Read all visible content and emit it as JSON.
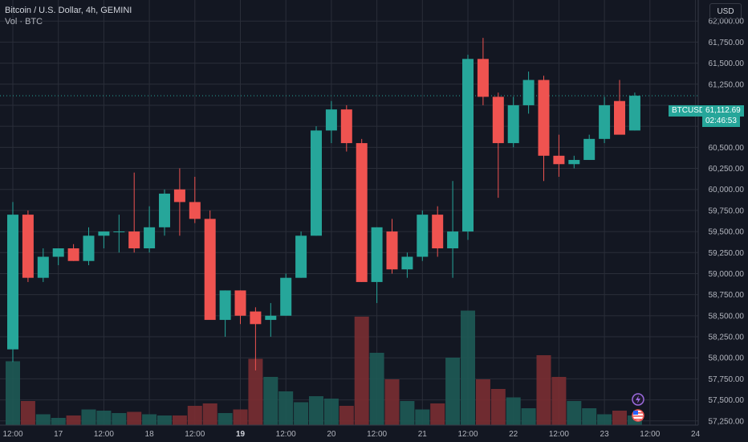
{
  "header": {
    "title": "Bitcoin / U.S. Dollar, 4h, GEMINI",
    "volume_label": "Vol · BTC"
  },
  "currency_button": "USD",
  "price_tag": {
    "symbol": "BTCUSD",
    "price": "61,112.69",
    "countdown": "02:46:53"
  },
  "colors": {
    "background": "#131722",
    "grid": "#2a2e39",
    "up": "#26a69a",
    "down": "#ef5350",
    "up_volume": "#1e5a55",
    "down_volume": "#7a2e32",
    "axis_text": "#b2b5be"
  },
  "icons": [
    "lightning-icon",
    "us-flag-icon"
  ],
  "chart_data": {
    "type": "candlestick",
    "title": "Bitcoin / U.S. Dollar, 4h, GEMINI",
    "ylim": [
      57200,
      62250
    ],
    "y_ticks": [
      57250,
      57500,
      57750,
      58000,
      58250,
      58500,
      58750,
      59000,
      59250,
      59500,
      59750,
      60000,
      60250,
      60500,
      60750,
      61000,
      61250,
      61500,
      61750,
      62000
    ],
    "y_tick_labels": [
      "57,250.00",
      "57,500.00",
      "57,750.00",
      "58,000.00",
      "58,250.00",
      "58,500.00",
      "58,750.00",
      "59,000.00",
      "59,250.00",
      "59,500.00",
      "59,750.00",
      "60,000.00",
      "60,250.00",
      "60,500.00",
      "",
      "",
      "61,250.00",
      "61,500.00",
      "61,750.00",
      "62,000.00"
    ],
    "x_ticks": [
      {
        "label": "12:00",
        "index": 0,
        "bold": false
      },
      {
        "label": "17",
        "index": 3,
        "bold": false
      },
      {
        "label": "12:00",
        "index": 6,
        "bold": false
      },
      {
        "label": "18",
        "index": 9,
        "bold": false
      },
      {
        "label": "12:00",
        "index": 12,
        "bold": false
      },
      {
        "label": "19",
        "index": 15,
        "bold": true
      },
      {
        "label": "12:00",
        "index": 18,
        "bold": false
      },
      {
        "label": "20",
        "index": 21,
        "bold": false
      },
      {
        "label": "12:00",
        "index": 24,
        "bold": false
      },
      {
        "label": "21",
        "index": 27,
        "bold": false
      },
      {
        "label": "12:00",
        "index": 30,
        "bold": false
      },
      {
        "label": "22",
        "index": 33,
        "bold": false
      },
      {
        "label": "12:00",
        "index": 36,
        "bold": false
      },
      {
        "label": "23",
        "index": 39,
        "bold": false
      },
      {
        "label": "12:00",
        "index": 42,
        "bold": false
      },
      {
        "label": "24",
        "index": 45,
        "bold": false
      }
    ],
    "last_price": 61112.69,
    "candles": [
      {
        "o": 58100,
        "h": 59850,
        "l": 57950,
        "c": 59700
      },
      {
        "o": 59700,
        "h": 59750,
        "l": 58900,
        "c": 58950
      },
      {
        "o": 58950,
        "h": 59300,
        "l": 58900,
        "c": 59200
      },
      {
        "o": 59200,
        "h": 59300,
        "l": 59100,
        "c": 59300
      },
      {
        "o": 59300,
        "h": 59350,
        "l": 59150,
        "c": 59150
      },
      {
        "o": 59150,
        "h": 59550,
        "l": 59100,
        "c": 59450
      },
      {
        "o": 59450,
        "h": 59500,
        "l": 59300,
        "c": 59500
      },
      {
        "o": 59500,
        "h": 59700,
        "l": 59250,
        "c": 59500
      },
      {
        "o": 59500,
        "h": 60200,
        "l": 59250,
        "c": 59300
      },
      {
        "o": 59300,
        "h": 59800,
        "l": 59250,
        "c": 59550
      },
      {
        "o": 59550,
        "h": 60000,
        "l": 59450,
        "c": 59950
      },
      {
        "o": 60000,
        "h": 60250,
        "l": 59450,
        "c": 59850
      },
      {
        "o": 59850,
        "h": 60150,
        "l": 59600,
        "c": 59650
      },
      {
        "o": 59650,
        "h": 59750,
        "l": 58450,
        "c": 58450
      },
      {
        "o": 58450,
        "h": 58800,
        "l": 58250,
        "c": 58800
      },
      {
        "o": 58800,
        "h": 58800,
        "l": 58400,
        "c": 58500
      },
      {
        "o": 58550,
        "h": 58600,
        "l": 57850,
        "c": 58400
      },
      {
        "o": 58450,
        "h": 58650,
        "l": 58250,
        "c": 58500
      },
      {
        "o": 58500,
        "h": 59000,
        "l": 58500,
        "c": 58950
      },
      {
        "o": 58950,
        "h": 59500,
        "l": 58950,
        "c": 59450
      },
      {
        "o": 59450,
        "h": 60750,
        "l": 59450,
        "c": 60700
      },
      {
        "o": 60700,
        "h": 61050,
        "l": 60550,
        "c": 60950
      },
      {
        "o": 60950,
        "h": 61000,
        "l": 60450,
        "c": 60550
      },
      {
        "o": 60550,
        "h": 60600,
        "l": 58900,
        "c": 58900
      },
      {
        "o": 58900,
        "h": 59550,
        "l": 58650,
        "c": 59550
      },
      {
        "o": 59500,
        "h": 59650,
        "l": 59000,
        "c": 59050
      },
      {
        "o": 59050,
        "h": 59250,
        "l": 58950,
        "c": 59200
      },
      {
        "o": 59200,
        "h": 59750,
        "l": 59150,
        "c": 59700
      },
      {
        "o": 59700,
        "h": 59800,
        "l": 59200,
        "c": 59300
      },
      {
        "o": 59300,
        "h": 60100,
        "l": 58950,
        "c": 59500
      },
      {
        "o": 59500,
        "h": 61600,
        "l": 59400,
        "c": 61550
      },
      {
        "o": 61550,
        "h": 61800,
        "l": 61000,
        "c": 61100
      },
      {
        "o": 61100,
        "h": 61150,
        "l": 59900,
        "c": 60550
      },
      {
        "o": 60550,
        "h": 61100,
        "l": 60500,
        "c": 61000
      },
      {
        "o": 61000,
        "h": 61400,
        "l": 60900,
        "c": 61300
      },
      {
        "o": 61300,
        "h": 61350,
        "l": 60100,
        "c": 60400
      },
      {
        "o": 60400,
        "h": 60650,
        "l": 60150,
        "c": 60300
      },
      {
        "o": 60300,
        "h": 60400,
        "l": 60250,
        "c": 60350
      },
      {
        "o": 60350,
        "h": 60650,
        "l": 60350,
        "c": 60600
      },
      {
        "o": 60600,
        "h": 61100,
        "l": 60550,
        "c": 61000
      },
      {
        "o": 61050,
        "h": 61300,
        "l": 60700,
        "c": 60650
      },
      {
        "o": 60700,
        "h": 61150,
        "l": 60700,
        "c": 61113
      }
    ],
    "volume_ylim": [
      0,
      100
    ],
    "volume": [
      53,
      20,
      9,
      6,
      8,
      13,
      12,
      10,
      11,
      9,
      8,
      8,
      16,
      18,
      10,
      13,
      55,
      40,
      28,
      19,
      24,
      22,
      16,
      90,
      60,
      38,
      20,
      13,
      18,
      56,
      95,
      38,
      30,
      23,
      14,
      58,
      40,
      20,
      14,
      9,
      12,
      8
    ]
  }
}
